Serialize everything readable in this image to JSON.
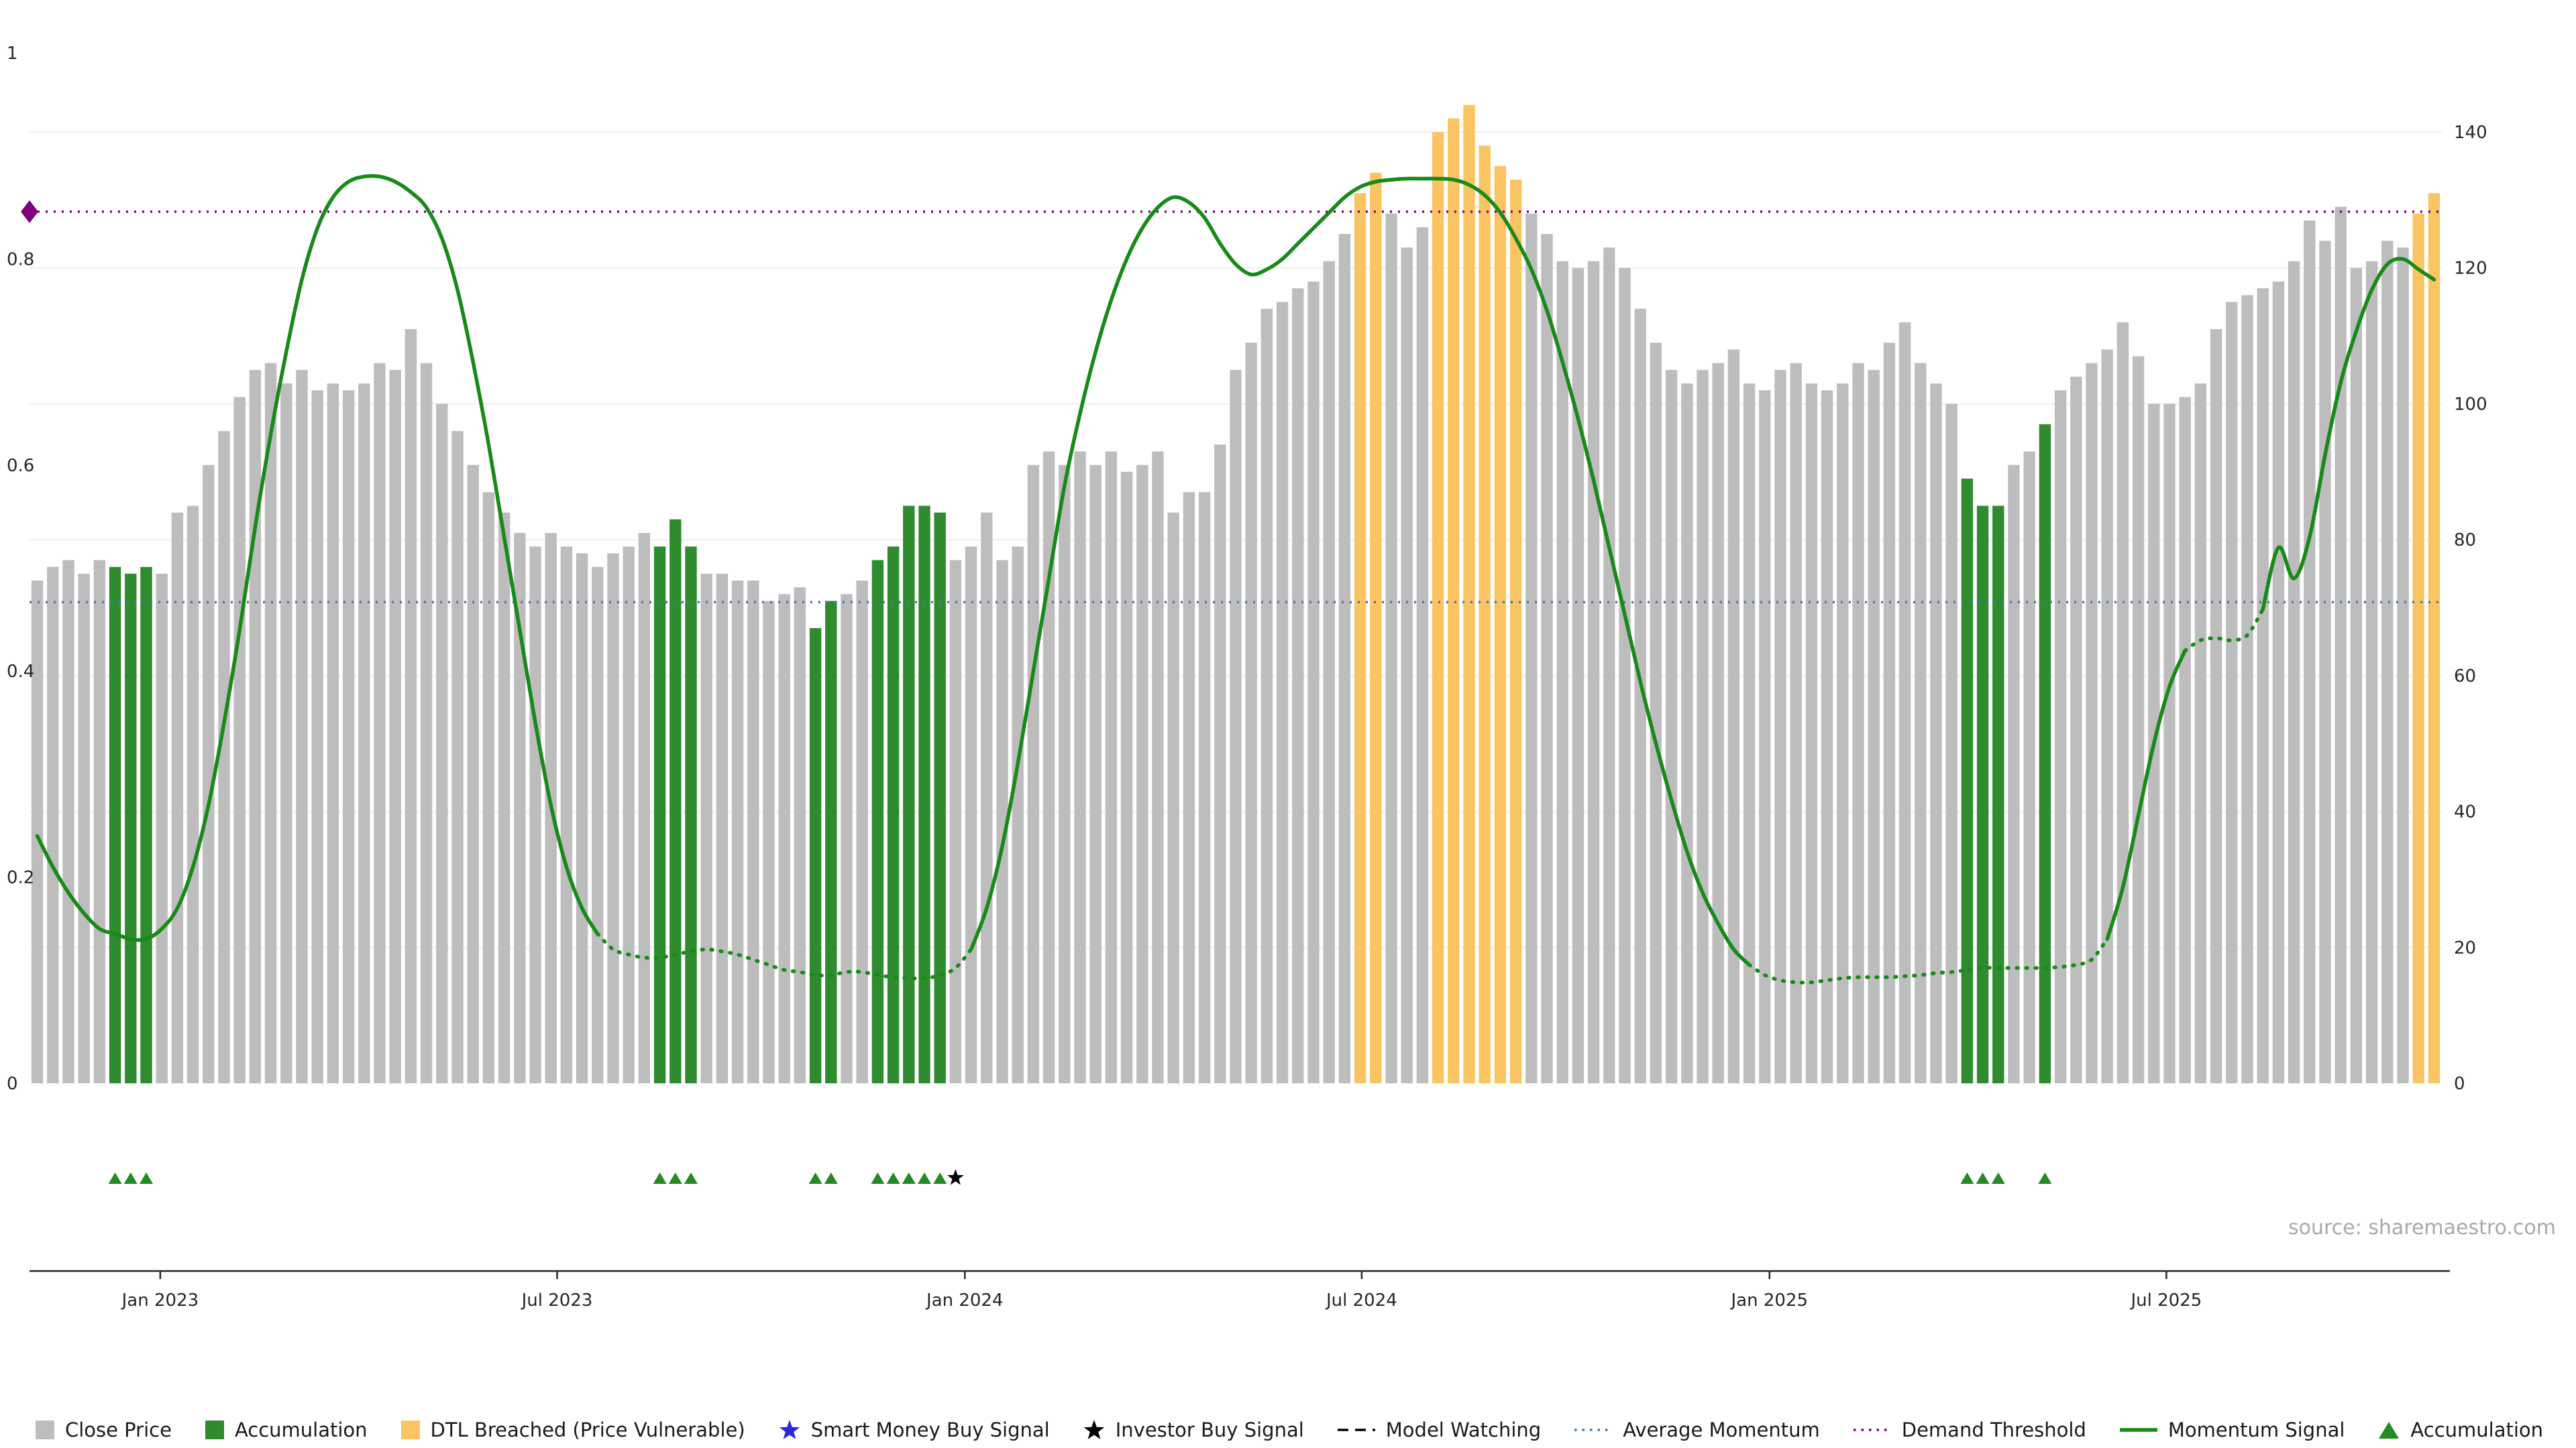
{
  "page": {
    "source_text": "source: sharemaestro.com"
  },
  "chart_data": {
    "type": "bar+line",
    "title": "",
    "x_unit": "weekly",
    "bars": {
      "series_name": "Close Price",
      "values": [
        74,
        76,
        77,
        75,
        77,
        76,
        75,
        76,
        75,
        84,
        85,
        91,
        96,
        101,
        105,
        106,
        103,
        105,
        102,
        103,
        102,
        103,
        106,
        105,
        111,
        106,
        100,
        96,
        91,
        87,
        84,
        81,
        79,
        81,
        79,
        78,
        76,
        78,
        79,
        81,
        79,
        83,
        79,
        75,
        75,
        74,
        74,
        71,
        72,
        73,
        67,
        71,
        72,
        74,
        77,
        79,
        85,
        85,
        84,
        77,
        79,
        84,
        77,
        79,
        91,
        93,
        91,
        93,
        91,
        93,
        90,
        91,
        93,
        84,
        87,
        87,
        94,
        105,
        109,
        114,
        115,
        117,
        118,
        121,
        125,
        131,
        134,
        128,
        123,
        126,
        140,
        142,
        144,
        138,
        135,
        133,
        128,
        125,
        121,
        120,
        121,
        123,
        120,
        114,
        109,
        105,
        103,
        105,
        106,
        108,
        103,
        102,
        105,
        106,
        103,
        102,
        103,
        106,
        105,
        109,
        112,
        106,
        103,
        100,
        89,
        85,
        85,
        91,
        93,
        97,
        102,
        104,
        106,
        108,
        112,
        107,
        100,
        100,
        101,
        103,
        111,
        115,
        116,
        117,
        118,
        121,
        127,
        124,
        129,
        120,
        121,
        124,
        123,
        128,
        131
      ],
      "accumulation_indices": [
        5,
        6,
        7,
        40,
        41,
        42,
        50,
        51,
        54,
        55,
        56,
        57,
        58,
        124,
        125,
        126,
        129
      ],
      "dtl_breached_indices": [
        85,
        86,
        90,
        91,
        92,
        93,
        94,
        95,
        153,
        154
      ]
    },
    "momentum": {
      "series_name": "Momentum Signal",
      "values": [
        0.24,
        0.21,
        0.185,
        0.165,
        0.15,
        0.145,
        0.14,
        0.14,
        0.15,
        0.17,
        0.21,
        0.27,
        0.35,
        0.44,
        0.54,
        0.63,
        0.71,
        0.78,
        0.83,
        0.86,
        0.875,
        0.88,
        0.88,
        0.875,
        0.865,
        0.85,
        0.82,
        0.77,
        0.7,
        0.62,
        0.53,
        0.44,
        0.35,
        0.27,
        0.21,
        0.17,
        0.145,
        0.13,
        0.125,
        0.122,
        0.122,
        0.125,
        0.128,
        0.13,
        0.128,
        0.125,
        0.12,
        0.115,
        0.11,
        0.108,
        0.105,
        0.105,
        0.108,
        0.108,
        0.105,
        0.103,
        0.102,
        0.102,
        0.105,
        0.112,
        0.13,
        0.17,
        0.23,
        0.31,
        0.4,
        0.49,
        0.58,
        0.65,
        0.71,
        0.76,
        0.8,
        0.83,
        0.85,
        0.86,
        0.855,
        0.84,
        0.815,
        0.795,
        0.785,
        0.79,
        0.8,
        0.815,
        0.83,
        0.845,
        0.86,
        0.87,
        0.875,
        0.877,
        0.878,
        0.878,
        0.878,
        0.877,
        0.872,
        0.862,
        0.845,
        0.82,
        0.79,
        0.75,
        0.7,
        0.645,
        0.585,
        0.52,
        0.455,
        0.39,
        0.33,
        0.275,
        0.225,
        0.185,
        0.155,
        0.13,
        0.115,
        0.105,
        0.1,
        0.098,
        0.098,
        0.1,
        0.102,
        0.103,
        0.103,
        0.103,
        0.104,
        0.105,
        0.107,
        0.108,
        0.11,
        0.112,
        0.112,
        0.112,
        0.112,
        0.112,
        0.113,
        0.115,
        0.12,
        0.14,
        0.19,
        0.26,
        0.33,
        0.385,
        0.42,
        0.43,
        0.432,
        0.43,
        0.435,
        0.46,
        0.52,
        0.49,
        0.53,
        0.61,
        0.68,
        0.73,
        0.77,
        0.795,
        0.8,
        0.79,
        0.78
      ],
      "dashed_ranges": [
        [
          36,
          60
        ],
        [
          110,
          133
        ],
        [
          138,
          143
        ]
      ]
    },
    "thresholds": {
      "demand_threshold": 0.846,
      "average_momentum": 0.467
    },
    "markers": {
      "accumulation_triangle_indices": [
        5,
        6,
        7,
        40,
        41,
        42,
        50,
        51,
        54,
        55,
        56,
        57,
        58,
        124,
        125,
        126,
        129
      ],
      "investor_buy_indices": [
        59
      ]
    },
    "axes": {
      "left": {
        "range": [
          0,
          1
        ],
        "ticks": [
          0,
          0.2,
          0.4,
          0.6,
          0.8,
          1
        ],
        "tick_labels": [
          "0",
          "0.2",
          "0.4",
          "0.6",
          "0.8",
          "1"
        ]
      },
      "right": {
        "range": [
          0,
          140
        ],
        "ticks": [
          0,
          20,
          40,
          60,
          80,
          100,
          120,
          140
        ],
        "tick_labels": [
          "0",
          "20",
          "40",
          "60",
          "80",
          "100",
          "120",
          "140"
        ]
      },
      "x": {
        "tick_positions": [
          8.4,
          33.9,
          60.1,
          85.6,
          111.8,
          137.3
        ],
        "tick_labels": [
          "Jan 2023",
          "Jul 2023",
          "Jan 2024",
          "Jul 2024",
          "Jan 2025",
          "Jul 2025"
        ]
      }
    },
    "colors": {
      "close_price": "#bdbdbd",
      "accumulation": "#2e8b2e",
      "dtl_breached": "#fbc463",
      "momentum": "#178a17",
      "demand_threshold": "#800080",
      "average_momentum": "#4878a8",
      "triangle": "#228b22",
      "investor_star": "#000000",
      "grid": "#efefef",
      "axis": "#262626"
    }
  },
  "legend": {
    "items": [
      {
        "name": "close-price",
        "label": "Close Price",
        "shape": "square",
        "color": "#bdbdbd"
      },
      {
        "name": "accumulation",
        "label": "Accumulation",
        "shape": "square",
        "color": "#2e8b2e"
      },
      {
        "name": "dtl-breached",
        "label": "DTL Breached (Price Vulnerable)",
        "shape": "square",
        "color": "#fbc463"
      },
      {
        "name": "smart-money-buy-signal",
        "label": "Smart Money Buy Signal",
        "shape": "star",
        "color": "#2727e0"
      },
      {
        "name": "investor-buy-signal",
        "label": "Investor Buy Signal",
        "shape": "star",
        "color": "#000000"
      },
      {
        "name": "model-watching",
        "label": "Model Watching",
        "shape": "dashes",
        "color": "#000000"
      },
      {
        "name": "average-momentum",
        "label": "Average Momentum",
        "shape": "dotted",
        "color": "#4878a8"
      },
      {
        "name": "demand-threshold",
        "label": "Demand Threshold",
        "shape": "dotted",
        "color": "#800080"
      },
      {
        "name": "momentum-signal",
        "label": "Momentum Signal",
        "shape": "line",
        "color": "#178a17"
      },
      {
        "name": "accumulation-marker",
        "label": "Accumulation",
        "shape": "triangle",
        "color": "#228b22"
      }
    ]
  }
}
